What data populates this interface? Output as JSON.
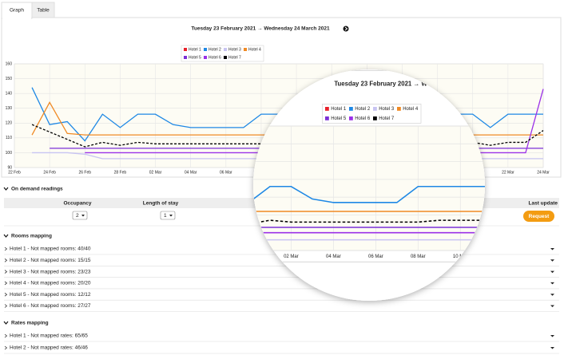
{
  "tabs": [
    "Graph",
    "Table"
  ],
  "chart_data": {
    "type": "line",
    "title": "Tuesday 23 February 2021 → Wednesday 24 March 2021",
    "categories": [
      "22 Feb",
      null,
      "24 Feb",
      null,
      "26 Feb",
      null,
      "28 Feb",
      null,
      "02 Mar",
      null,
      "04 Mar",
      null,
      "06 Mar",
      null,
      "08 Mar",
      null,
      "10 Mar",
      null,
      "12 Mar",
      null,
      "14 Mar",
      null,
      "16 Mar",
      null,
      "18 Mar",
      null,
      "20 Mar",
      null,
      "22 Mar",
      null,
      "24 Mar"
    ],
    "series": [
      {
        "name": "Hotel 1",
        "color": "#e8202a",
        "values": [
          null,
          null,
          null,
          null,
          null,
          null,
          null,
          null,
          null,
          null,
          null,
          null,
          null,
          null,
          null,
          null,
          null,
          null,
          null,
          null,
          null,
          null,
          null,
          null,
          null,
          null,
          null,
          null,
          null,
          null,
          null
        ]
      },
      {
        "name": "Hotel 2",
        "color": "#1e88e5",
        "values": [
          null,
          144,
          119,
          121,
          108,
          126,
          117,
          126,
          126,
          119,
          117,
          117,
          117,
          117,
          126,
          126,
          126,
          126,
          126,
          126,
          126,
          126,
          126,
          126,
          126,
          126,
          126,
          117,
          126,
          126,
          126
        ]
      },
      {
        "name": "Hotel 3",
        "color": "#c8c4f2",
        "values": [
          null,
          100,
          100,
          100,
          99,
          96,
          96,
          96,
          96,
          96,
          96,
          96,
          96,
          96,
          96,
          96,
          96,
          96,
          96,
          96,
          96,
          96,
          96,
          96,
          96,
          96,
          96,
          96,
          96,
          96,
          96
        ]
      },
      {
        "name": "Hotel 4",
        "color": "#f08a24",
        "values": [
          null,
          112,
          134,
          113,
          112,
          112,
          112,
          112,
          112,
          112,
          112,
          112,
          112,
          112,
          112,
          112,
          112,
          112,
          112,
          112,
          112,
          112,
          112,
          112,
          112,
          112,
          112,
          112,
          112,
          112,
          112
        ]
      },
      {
        "name": "Hotel 5",
        "color": "#7b2fd6",
        "values": [
          null,
          null,
          103,
          103,
          103,
          103,
          103,
          103,
          103,
          103,
          103,
          103,
          103,
          103,
          103,
          103,
          103,
          103,
          103,
          103,
          103,
          103,
          103,
          103,
          103,
          103,
          103,
          103,
          103,
          103,
          103
        ]
      },
      {
        "name": "Hotel 6",
        "color": "#9b30e8",
        "values": [
          null,
          null,
          null,
          null,
          100,
          100,
          100,
          100,
          100,
          100,
          100,
          100,
          100,
          100,
          100,
          100,
          100,
          100,
          100,
          100,
          100,
          100,
          100,
          100,
          100,
          100,
          100,
          100,
          100,
          100,
          143
        ]
      },
      {
        "name": "Hotel 7",
        "color": "#000000",
        "dashed": true,
        "values": [
          null,
          119,
          114,
          109,
          104,
          107,
          105,
          107,
          106,
          106,
          106,
          106,
          106,
          106,
          106,
          107,
          107,
          107,
          107,
          107,
          107,
          107,
          107,
          107,
          107,
          107,
          107,
          105,
          107,
          107,
          115
        ]
      }
    ],
    "ylim": [
      90,
      160
    ],
    "yticks": [
      90,
      100,
      110,
      120,
      130,
      140,
      150,
      160
    ],
    "grid": true
  },
  "on_demand": {
    "title": "On demand readings",
    "columns": [
      "Occupancy",
      "Length of stay",
      "Last update"
    ],
    "occupancy": "2",
    "length_of_stay": "1",
    "button": "Request"
  },
  "rooms_mapping": {
    "title": "Rooms mapping",
    "items": [
      "Hotel 1 - Not mapped rooms: 40/40",
      "Hotel 2 - Not mapped rooms: 15/15",
      "Hotel 3 - Not mapped rooms: 23/23",
      "Hotel 4 - Not mapped rooms: 20/20",
      "Hotel 5 - Not mapped rooms: 12/12",
      "Hotel 6 - Not mapped rooms: 27/27"
    ]
  },
  "rates_mapping": {
    "title": "Rates mapping",
    "items": [
      "Hotel 1 - Not mapped rates: 65/65",
      "Hotel 2 - Not mapped rates: 46/46"
    ]
  }
}
